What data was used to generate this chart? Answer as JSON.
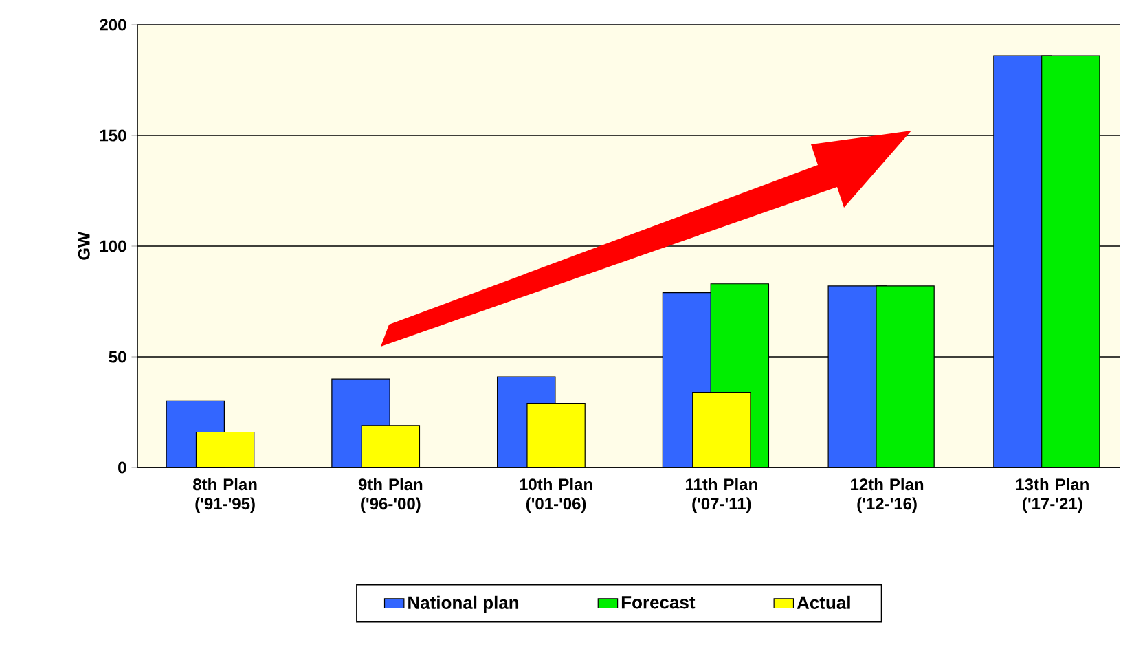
{
  "chart_data": {
    "type": "bar",
    "ylabel": "GW",
    "categories": [
      "8th Plan ('91-'95)",
      "9th Plan ('96-'00)",
      "10th Plan ('01-'06)",
      "11th Plan ('07-'11)",
      "12th Plan ('12-'16)",
      "13th Plan ('17-'21)"
    ],
    "series": [
      {
        "name": "National plan",
        "color": "#3366ff",
        "values": [
          30,
          40,
          41,
          79,
          82,
          186
        ]
      },
      {
        "name": "Actual",
        "color": "#ffff00",
        "values": [
          16,
          19,
          29,
          34,
          null,
          null
        ]
      },
      {
        "name": "Forecast",
        "color": "#00ee00",
        "values": [
          null,
          null,
          null,
          83,
          82,
          186
        ]
      }
    ],
    "ylim": [
      0,
      200
    ],
    "yticks": [
      0,
      50,
      100,
      150,
      200
    ],
    "grid": "y",
    "legend": "bottom"
  }
}
